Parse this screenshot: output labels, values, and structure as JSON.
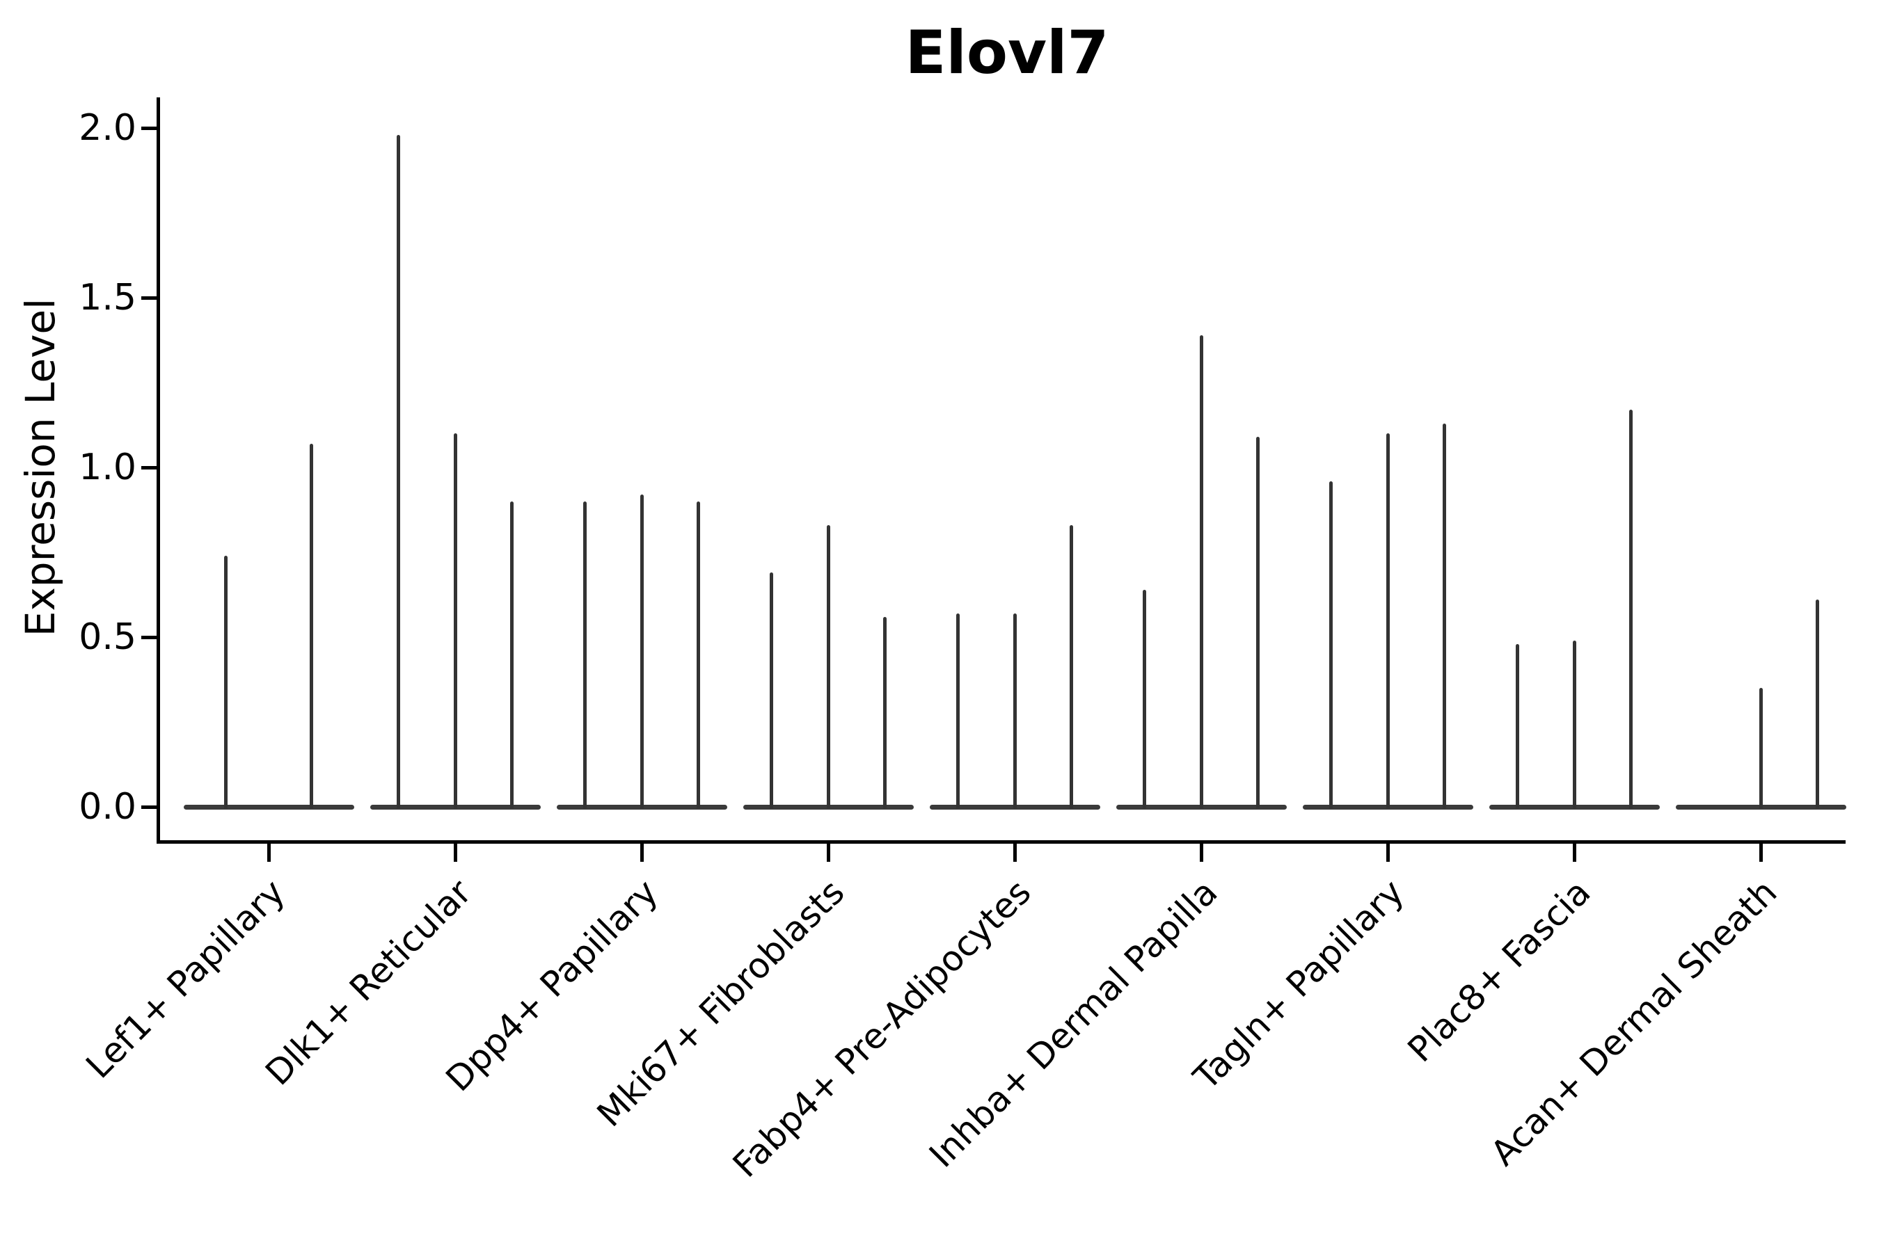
{
  "title": "Elovl7",
  "y_axis": {
    "label": "Expression Level",
    "tick_labels": [
      "0.0",
      "0.5",
      "1.0",
      "1.5",
      "2.0"
    ]
  },
  "x_axis": {
    "label": "",
    "categories": [
      "Lef1+ Papillary",
      "Dlk1+ Reticular",
      "Dpp4+ Papillary",
      "Mki67+ Fibroblasts",
      "Fabp4+ Pre-Adipocytes",
      "Inhba+ Dermal Papilla",
      "Tagln+ Papillary",
      "Plac8+ Fascia",
      "Acan+ Dermal Sheath"
    ]
  },
  "colors": {
    "violin": "#333333",
    "baseline": "#3a3a3a",
    "axis": "#000000",
    "text": "#000000"
  },
  "chart_data": {
    "type": "violin",
    "title": "Elovl7",
    "xlabel": "",
    "ylabel": "Expression Level",
    "ylim": [
      -0.1,
      2.09
    ],
    "yticks": [
      0.0,
      0.5,
      1.0,
      1.5,
      2.0
    ],
    "grid": false,
    "legend": false,
    "categories": [
      "Lef1+ Papillary",
      "Dlk1+ Reticular",
      "Dpp4+ Papillary",
      "Mki67+ Fibroblasts",
      "Fabp4+ Pre-Adipocytes",
      "Inhba+ Dermal Papilla",
      "Tagln+ Papillary",
      "Plac8+ Fascia",
      "Acan+ Dermal Sheath"
    ],
    "groups": [
      {
        "category": "Lef1+ Papillary",
        "subviolin_max_expression": [
          0.74,
          1.07
        ]
      },
      {
        "category": "Dlk1+ Reticular",
        "subviolin_max_expression": [
          1.98,
          1.1,
          0.9
        ]
      },
      {
        "category": "Dpp4+ Papillary",
        "subviolin_max_expression": [
          0.9,
          0.92,
          0.9
        ]
      },
      {
        "category": "Mki67+ Fibroblasts",
        "subviolin_max_expression": [
          0.69,
          0.83,
          0.56
        ]
      },
      {
        "category": "Fabp4+ Pre-Adipocytes",
        "subviolin_max_expression": [
          0.57,
          0.57,
          0.83
        ]
      },
      {
        "category": "Inhba+ Dermal Papilla",
        "subviolin_max_expression": [
          0.64,
          1.39,
          1.09
        ]
      },
      {
        "category": "Tagln+ Papillary",
        "subviolin_max_expression": [
          0.96,
          1.1,
          1.13
        ]
      },
      {
        "category": "Plac8+ Fascia",
        "subviolin_max_expression": [
          0.48,
          0.49,
          1.17
        ]
      },
      {
        "category": "Acan+ Dermal Sheath",
        "subviolin_max_expression": [
          0.0,
          0.35,
          0.61
        ]
      }
    ],
    "note": "Violin plot: each category shows flattened violins at expression 0 with thin spikes reaching the maximum expression of the few expressing cells."
  }
}
